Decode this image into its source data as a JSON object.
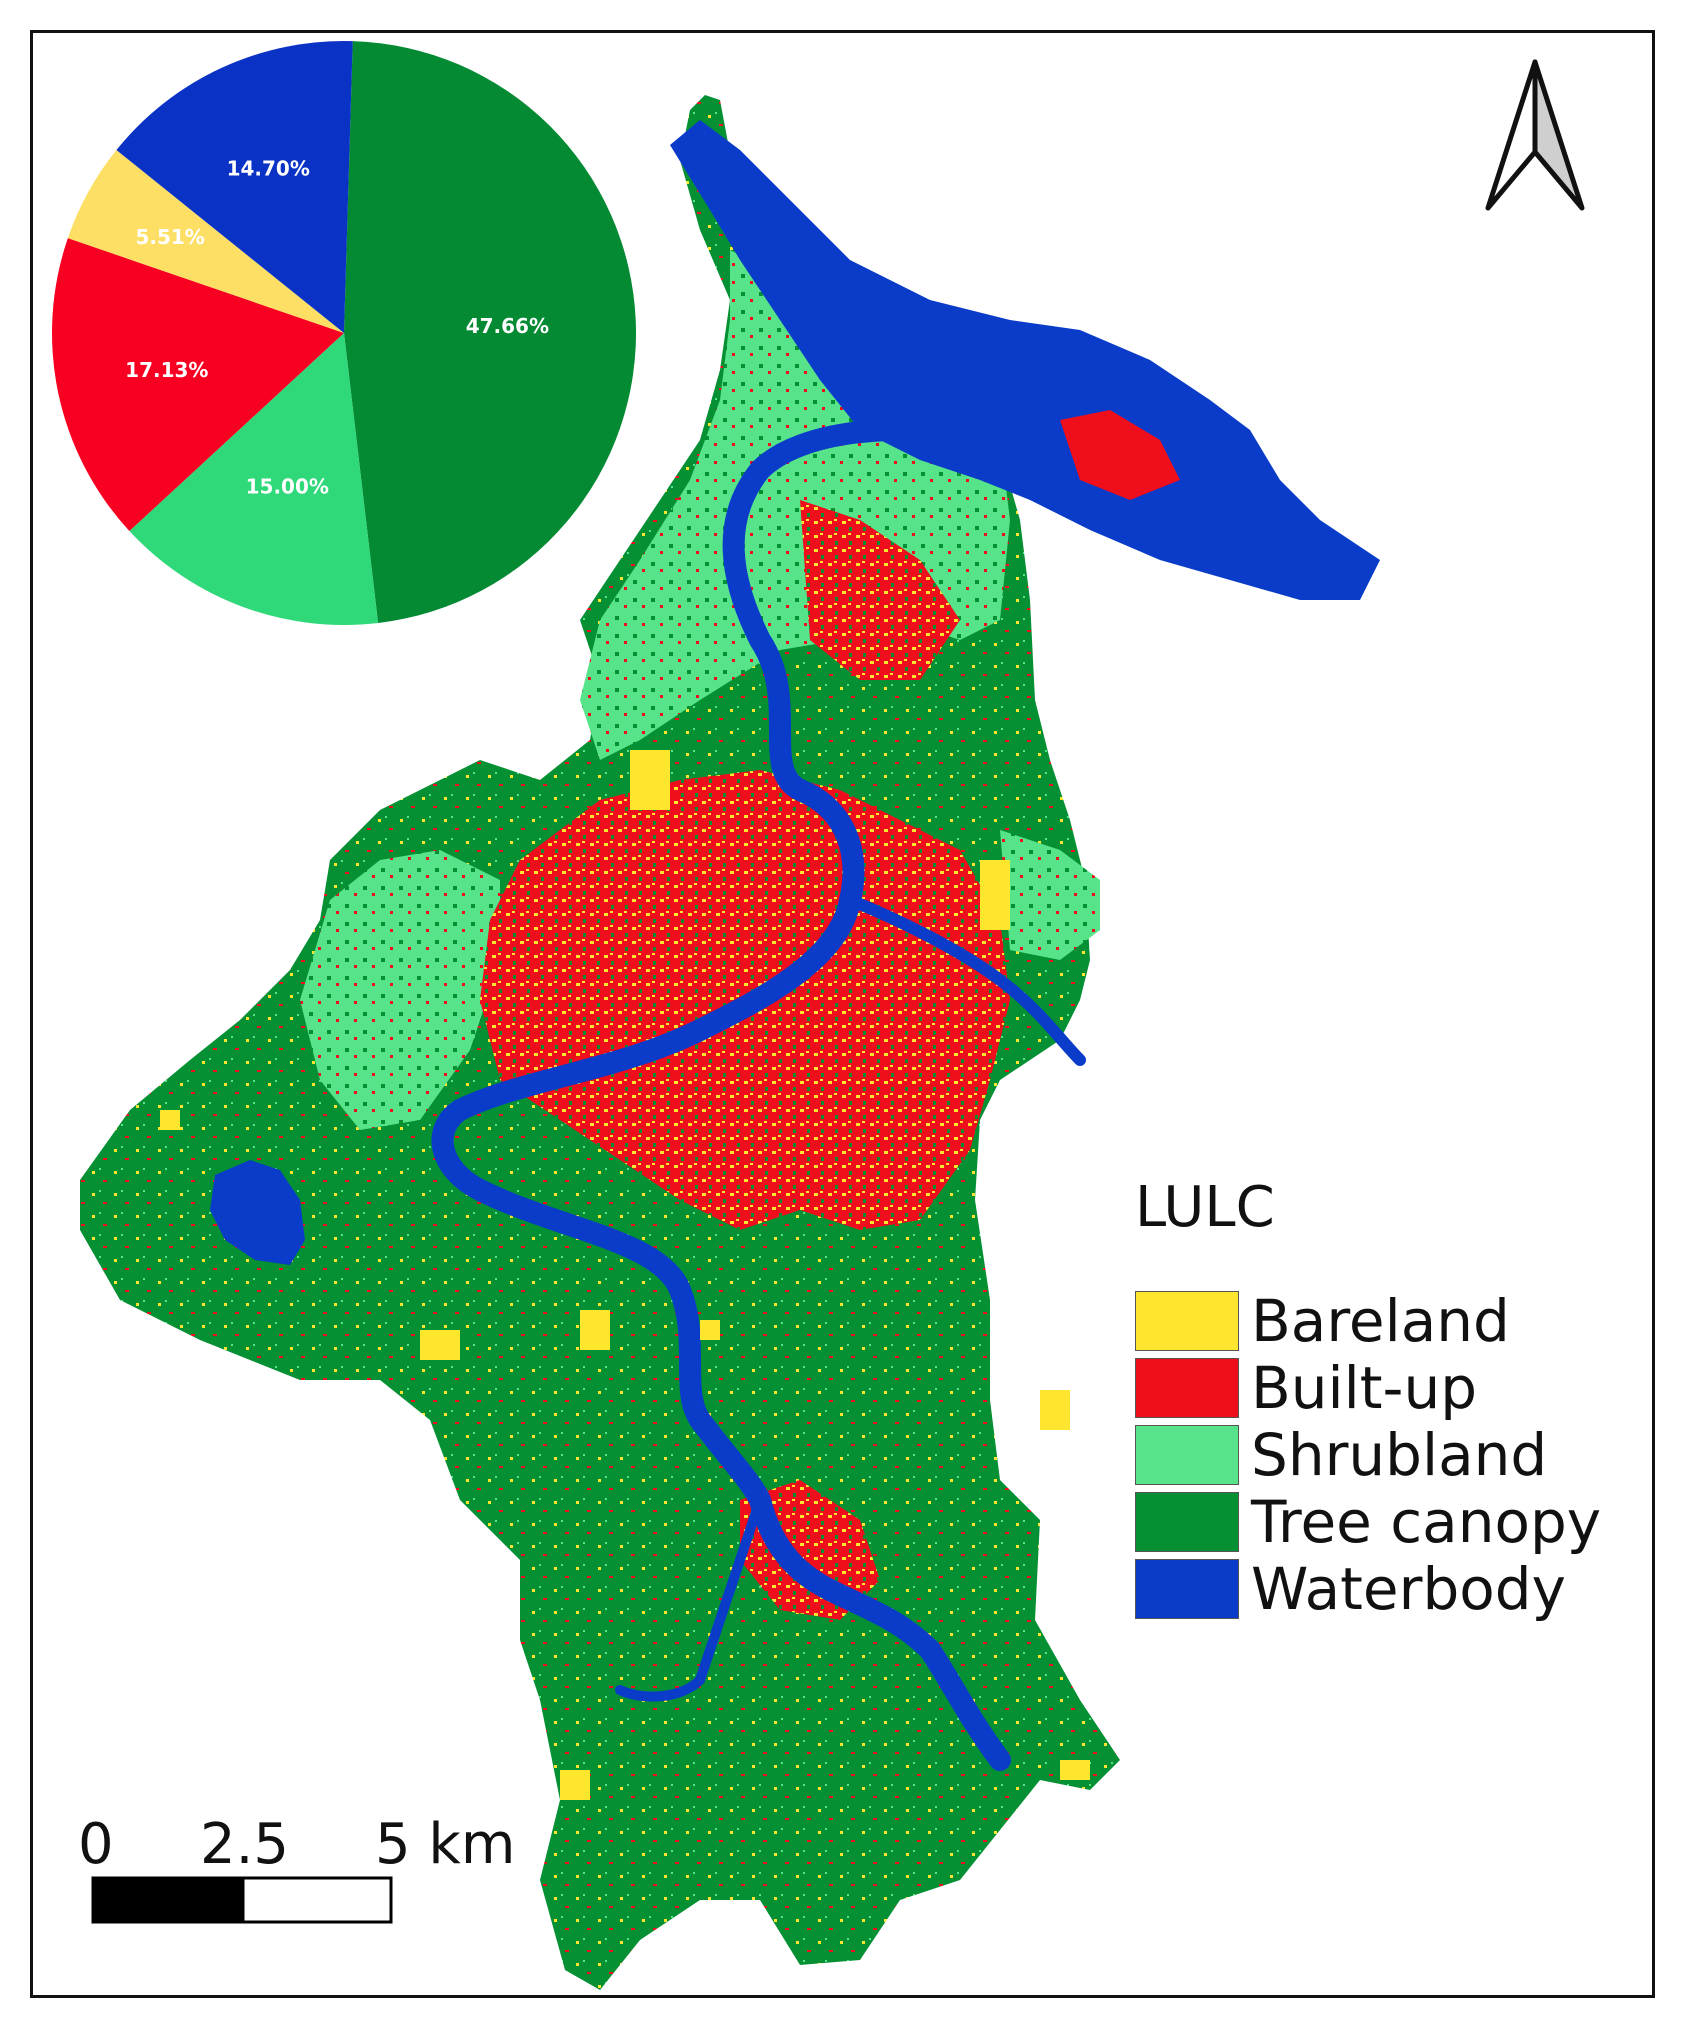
{
  "legend": {
    "title": "LULC",
    "items": [
      {
        "label": "Bareland",
        "color": "#ffe62e"
      },
      {
        "label": "Built-up",
        "color": "#ef0e1c"
      },
      {
        "label": "Shrubland",
        "color": "#57e389"
      },
      {
        "label": "Tree canopy",
        "color": "#059033"
      },
      {
        "label": "Waterbody",
        "color": "#0a3cc9"
      }
    ]
  },
  "chart_data": {
    "type": "pie",
    "slices": [
      {
        "class": "Tree canopy",
        "value": 47.66,
        "label": "47.66%",
        "color": "#048a32"
      },
      {
        "class": "Shrubland",
        "value": 15.0,
        "label": "15.00%",
        "color": "#2fd97a"
      },
      {
        "class": "Built-up",
        "value": 17.13,
        "label": "17.13%",
        "color": "#f80021"
      },
      {
        "class": "Bareland",
        "value": 5.51,
        "label": "5.51%",
        "color": "#fddf66"
      },
      {
        "class": "Waterbody",
        "value": 14.7,
        "label": "14.70%",
        "color": "#0a33c6"
      }
    ]
  },
  "scale_bar": {
    "labels": [
      "0",
      "2.5",
      "5 km"
    ]
  },
  "north_arrow": {
    "icon": "north-arrow-icon"
  }
}
